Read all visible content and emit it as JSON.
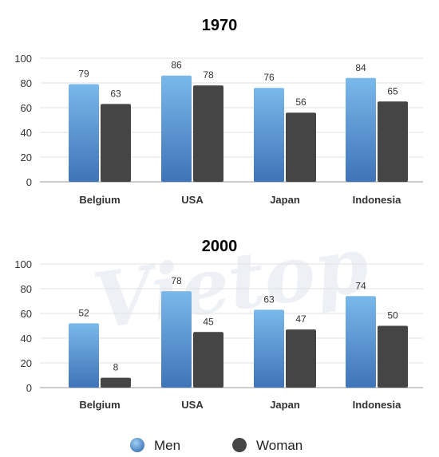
{
  "watermark": "Vietop",
  "chart_data": [
    {
      "type": "bar",
      "title": "1970",
      "categories": [
        "Belgium",
        "USA",
        "Japan",
        "Indonesia"
      ],
      "series": [
        {
          "name": "Men",
          "values": [
            79,
            86,
            76,
            84
          ]
        },
        {
          "name": "Woman",
          "values": [
            63,
            78,
            56,
            65
          ]
        }
      ],
      "yticks": [
        "0",
        "20",
        "40",
        "60",
        "80",
        "100"
      ],
      "ylim": [
        0,
        100
      ],
      "xlabel": "",
      "ylabel": "",
      "grid": true,
      "data_labels": true
    },
    {
      "type": "bar",
      "title": "2000",
      "categories": [
        "Belgium",
        "USA",
        "Japan",
        "Indonesia"
      ],
      "series": [
        {
          "name": "Men",
          "values": [
            52,
            78,
            63,
            74
          ]
        },
        {
          "name": "Woman",
          "values": [
            8,
            45,
            47,
            50
          ]
        }
      ],
      "yticks": [
        "0",
        "20",
        "40",
        "60",
        "80",
        "100"
      ],
      "ylim": [
        0,
        100
      ],
      "xlabel": "",
      "ylabel": "",
      "grid": true,
      "data_labels": true
    }
  ],
  "legend": {
    "placement": "bottom",
    "items": [
      {
        "label": "Men",
        "color": "#4a86c8"
      },
      {
        "label": "Woman",
        "color": "#454545"
      }
    ]
  },
  "colors": {
    "men_top": "#7ab8ea",
    "men_bottom": "#3f74b8",
    "woman": "#454545",
    "grid": "#e2e2e2",
    "axis_text": "#333333",
    "title_text": "#222222"
  }
}
